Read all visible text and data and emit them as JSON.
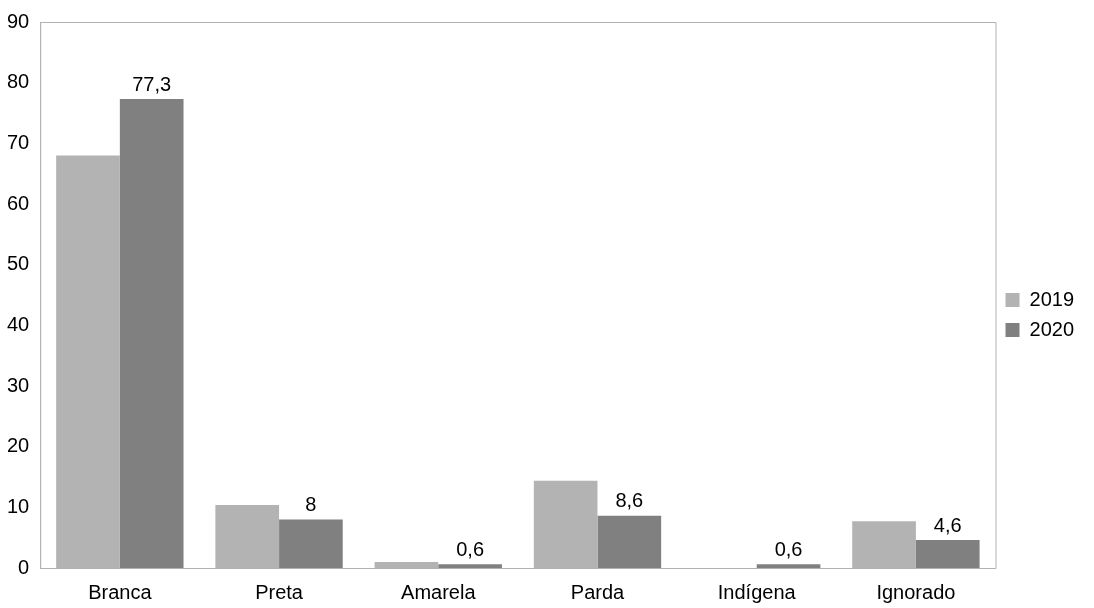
{
  "chart_data": {
    "type": "bar",
    "categories": [
      "Branca",
      "Preta",
      "Amarela",
      "Parda",
      "Indígena",
      "Ignorado"
    ],
    "series": [
      {
        "name": "2019",
        "color": "#b3b3b3",
        "values": [
          68,
          10.4,
          1,
          14.4,
          0,
          7.7
        ]
      },
      {
        "name": "2020",
        "color": "#808080",
        "values": [
          77.3,
          8,
          0.6,
          8.6,
          0.6,
          4.6
        ],
        "value_labels": [
          "77,3",
          "8",
          "0,6",
          "8,6",
          "0,6",
          "4,6"
        ]
      }
    ],
    "ylim": [
      0,
      90
    ],
    "yticks": [
      0,
      10,
      20,
      30,
      40,
      50,
      60,
      70,
      80,
      90
    ],
    "grid": false,
    "legend": "right"
  }
}
